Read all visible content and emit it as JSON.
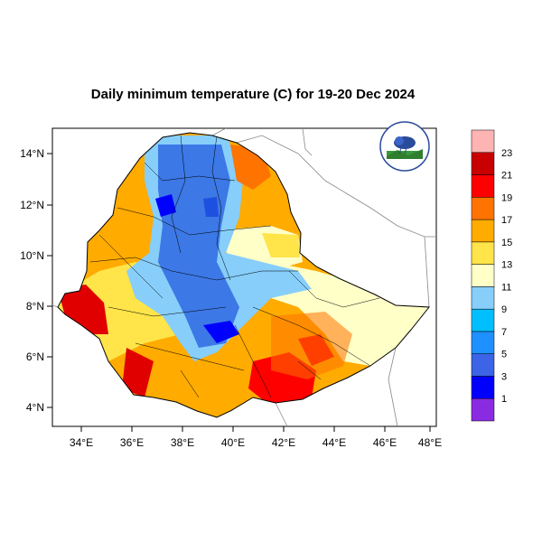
{
  "title": "Daily minimum temperature (C) for 19-20 Dec 2024",
  "axes": {
    "lat_labels": [
      "14°N",
      "12°N",
      "10°N",
      "8°N",
      "6°N",
      "4°N"
    ],
    "lon_labels": [
      "34°E",
      "36°E",
      "38°E",
      "40°E",
      "42°E",
      "44°E",
      "46°E",
      "48°E"
    ]
  },
  "legend": {
    "colors": [
      "#8a2be2",
      "#0000ff",
      "#3c64e6",
      "#1e90ff",
      "#00bfff",
      "#87cefa",
      "#ffffc8",
      "#ffe44a",
      "#ffab00",
      "#ff7300",
      "#ff0000",
      "#c80000",
      "#ffb4b4"
    ],
    "labels": [
      "1",
      "3",
      "5",
      "7",
      "9",
      "11",
      "13",
      "15",
      "17",
      "19",
      "21",
      "23"
    ]
  },
  "colors": {
    "cold": "#3c78e6",
    "cool": "#87c8f5",
    "mild": "#ffffc8",
    "warm": "#ffc040",
    "hot": "#ff7300",
    "very_hot": "#e00000",
    "extreme": "#c00000",
    "neighbor_lines": "#888888"
  },
  "logo_icon": "agency-logo-icon"
}
